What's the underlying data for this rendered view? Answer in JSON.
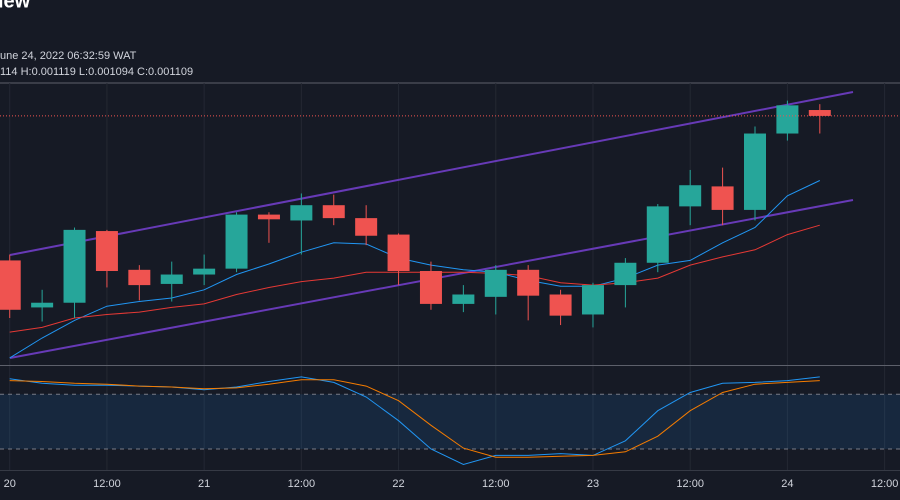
{
  "header": {
    "logo": "iew",
    "date": "une 24, 2022 06:32:59 WAT",
    "ohlc": "114 H:0.001119 L:0.001094 C:0.001109"
  },
  "chart_data": [
    {
      "type": "candlestick",
      "x": [
        0,
        4,
        8,
        12,
        16,
        20,
        24,
        28,
        32,
        36,
        40,
        44,
        48,
        52,
        56,
        60,
        64,
        68,
        72,
        76,
        80,
        84,
        88,
        92,
        96,
        100
      ],
      "open": [
        0.000986,
        0.000946,
        0.00095,
        0.001011,
        0.000978,
        0.000966,
        0.000974,
        0.000979,
        0.001025,
        0.00102,
        0.001033,
        0.001022,
        0.001008,
        0.000977,
        0.000949,
        0.000955,
        0.000978,
        0.000957,
        0.00094,
        0.000965,
        0.000984,
        0.001032,
        0.001049,
        0.001029,
        0.001094,
        0.001114
      ],
      "high": [
        0.000991,
        0.000961,
        0.001014,
        0.001012,
        0.000982,
        0.000985,
        0.000991,
        0.001027,
        0.001027,
        0.001043,
        0.001042,
        0.001033,
        0.001009,
        0.000985,
        0.000965,
        0.000982,
        0.000982,
        0.000961,
        0.000967,
        0.000988,
        0.001034,
        0.001063,
        0.001065,
        0.0011,
        0.001122,
        0.001119
      ],
      "low": [
        0.000937,
        0.000934,
        0.000937,
        0.000963,
        0.000952,
        0.000951,
        0.000965,
        0.000976,
        0.001001,
        0.000991,
        0.001016,
        0.000999,
        0.000965,
        0.000944,
        0.000942,
        0.00094,
        0.000935,
        0.000931,
        0.000929,
        0.000946,
        0.000976,
        0.001016,
        0.001016,
        0.00102,
        0.001088,
        0.001094
      ],
      "close": [
        0.000944,
        0.00095,
        0.001012,
        0.000977,
        0.000965,
        0.000974,
        0.000979,
        0.001025,
        0.001021,
        0.001033,
        0.001022,
        0.001007,
        0.000977,
        0.000949,
        0.000957,
        0.000978,
        0.000956,
        0.000939,
        0.000965,
        0.000984,
        0.001032,
        0.00105,
        0.001029,
        0.001094,
        0.001118,
        0.001109
      ],
      "up_color": "#26a69a",
      "down_color": "#ef5350",
      "lines": [
        {
          "color": "#2196f3",
          "values": [
            0.000903,
            0.00092,
            0.000935,
            0.000947,
            0.000951,
            0.000954,
            0.000961,
            0.000974,
            0.000983,
            0.000993,
            0.001001,
            0.001,
            0.000988,
            0.000982,
            0.000978,
            0.000976,
            0.000969,
            0.000964,
            0.000964,
            0.000971,
            0.000982,
            0.000986,
            0.001001,
            0.001014,
            0.001041,
            0.001054
          ]
        },
        {
          "color": "#e53935",
          "values": [
            0.000925,
            0.000929,
            0.000937,
            0.00094,
            0.000942,
            0.000946,
            0.000949,
            0.000957,
            0.000963,
            0.000968,
            0.000971,
            0.000976,
            0.000976,
            0.000976,
            0.000976,
            0.000975,
            0.000973,
            0.000967,
            0.000965,
            0.000967,
            0.000971,
            0.000982,
            0.000989,
            0.000995,
            0.001008,
            0.001016
          ]
        }
      ],
      "xlim": [
        -1.2,
        109.9
      ],
      "ylim": [
        0.000897,
        0.001137
      ],
      "last_price_line": true,
      "grid": true
    },
    {
      "type": "line",
      "x": [
        0,
        4,
        8,
        12,
        16,
        20,
        24,
        28,
        32,
        36,
        40,
        44,
        48,
        52,
        56,
        60,
        64,
        68,
        72,
        76,
        80,
        84,
        88,
        92,
        96,
        100
      ],
      "series": [
        {
          "color": "#2196f3",
          "values": [
            97,
            92,
            90,
            90,
            89,
            88,
            85,
            88,
            94,
            99,
            93,
            77,
            51,
            20,
            3,
            13,
            13,
            15,
            13,
            29,
            62,
            82,
            92,
            93,
            95,
            99
          ]
        },
        {
          "color": "#f57c00",
          "values": [
            95,
            94,
            92,
            91,
            89,
            88,
            86,
            87,
            91,
            96,
            96,
            89,
            73,
            46,
            21,
            11,
            11,
            12,
            13,
            17,
            34,
            62,
            82,
            91,
            93,
            95
          ]
        }
      ],
      "levels": [
        80,
        20
      ],
      "xlim": [
        -1.2,
        109.9
      ],
      "ylim": [
        -3,
        111
      ],
      "xticks": [
        {
          "value": 0,
          "label": "20"
        },
        {
          "value": 12,
          "label": "12:00"
        },
        {
          "value": 24,
          "label": "21"
        },
        {
          "value": 36,
          "label": "12:00"
        },
        {
          "value": 48,
          "label": "22"
        },
        {
          "value": 60,
          "label": "12:00"
        },
        {
          "value": 72,
          "label": "23"
        },
        {
          "value": 84,
          "label": "12:00"
        },
        {
          "value": 96,
          "label": "24"
        },
        {
          "value": 108,
          "label": "12:00"
        }
      ],
      "grid": true
    }
  ]
}
